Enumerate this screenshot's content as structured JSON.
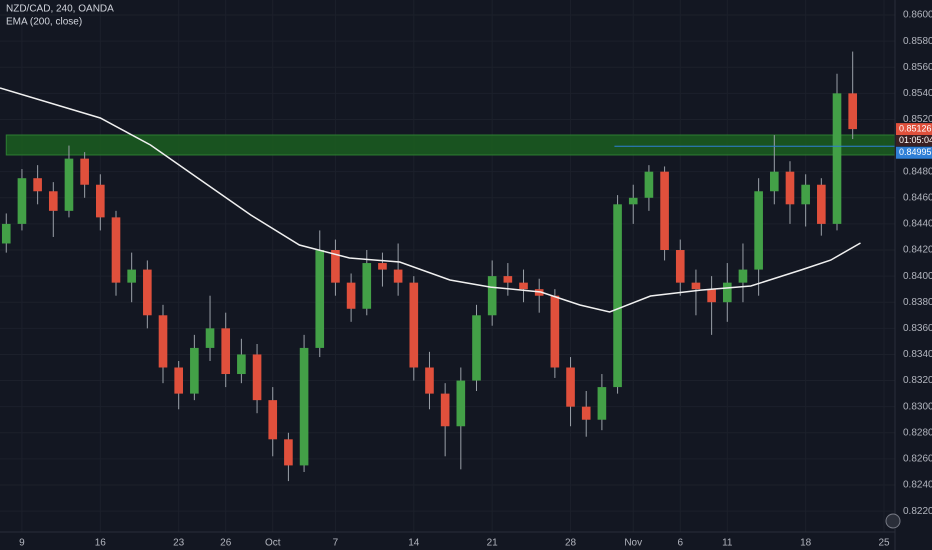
{
  "chart_data": {
    "type": "candlestick",
    "title": "NZD/CAD, 240, OANDA",
    "indicator": "EMA (200, close)",
    "up_color": "#43a047",
    "down_color": "#e0503c",
    "wick_color": "#9aa0a8",
    "x": [
      -1,
      0,
      1,
      2,
      3,
      4,
      5,
      6,
      7,
      8,
      9,
      10,
      11,
      12,
      13,
      14,
      15,
      16,
      17,
      18,
      19,
      20,
      21,
      22,
      23,
      24,
      25,
      26,
      27,
      28,
      29,
      30,
      31,
      32,
      33,
      34,
      35,
      36,
      37,
      38,
      39,
      40,
      41,
      42,
      43,
      44,
      45,
      46,
      47,
      48,
      49,
      50,
      51,
      52,
      53
    ],
    "open": [
      0.8425,
      0.844,
      0.8475,
      0.8465,
      0.845,
      0.849,
      0.847,
      0.8445,
      0.8395,
      0.8405,
      0.837,
      0.833,
      0.831,
      0.8345,
      0.836,
      0.8325,
      0.834,
      0.8305,
      0.8275,
      0.8255,
      0.8345,
      0.842,
      0.8395,
      0.8375,
      0.841,
      0.8405,
      0.8395,
      0.833,
      0.831,
      0.8285,
      0.832,
      0.837,
      0.84,
      0.8395,
      0.839,
      0.8385,
      0.833,
      0.83,
      0.829,
      0.8315,
      0.8455,
      0.846,
      0.848,
      0.842,
      0.8395,
      0.839,
      0.838,
      0.8395,
      0.8405,
      0.8465,
      0.848,
      0.8455,
      0.847,
      0.844,
      0.854
    ],
    "high": [
      0.8448,
      0.8482,
      0.8485,
      0.8472,
      0.85,
      0.8495,
      0.8478,
      0.845,
      0.8418,
      0.8412,
      0.8378,
      0.8335,
      0.8355,
      0.8385,
      0.8372,
      0.8352,
      0.8348,
      0.8315,
      0.828,
      0.8355,
      0.8435,
      0.8428,
      0.8402,
      0.842,
      0.8418,
      0.8425,
      0.84,
      0.8342,
      0.8318,
      0.833,
      0.8378,
      0.8412,
      0.841,
      0.8405,
      0.8398,
      0.839,
      0.8338,
      0.8312,
      0.8325,
      0.8462,
      0.847,
      0.8485,
      0.8484,
      0.8428,
      0.8405,
      0.84,
      0.841,
      0.8425,
      0.8475,
      0.8508,
      0.8488,
      0.8478,
      0.8475,
      0.8555,
      0.8572
    ],
    "low": [
      0.8418,
      0.8435,
      0.8455,
      0.843,
      0.8445,
      0.846,
      0.8435,
      0.8385,
      0.838,
      0.836,
      0.8318,
      0.8298,
      0.8305,
      0.8335,
      0.8315,
      0.8318,
      0.8295,
      0.8262,
      0.8243,
      0.825,
      0.8338,
      0.8385,
      0.8365,
      0.837,
      0.8392,
      0.8385,
      0.832,
      0.8298,
      0.8262,
      0.8252,
      0.8312,
      0.8362,
      0.8385,
      0.838,
      0.8372,
      0.8322,
      0.8285,
      0.8277,
      0.8282,
      0.831,
      0.844,
      0.845,
      0.8412,
      0.8385,
      0.837,
      0.8355,
      0.8365,
      0.838,
      0.8385,
      0.8455,
      0.844,
      0.8438,
      0.8431,
      0.8435,
      0.8505
    ],
    "close": [
      0.844,
      0.8475,
      0.8465,
      0.845,
      0.849,
      0.847,
      0.8445,
      0.8395,
      0.8405,
      0.837,
      0.833,
      0.831,
      0.8345,
      0.836,
      0.8325,
      0.834,
      0.8305,
      0.8275,
      0.8255,
      0.8345,
      0.842,
      0.8395,
      0.8375,
      0.841,
      0.8405,
      0.8395,
      0.833,
      0.831,
      0.8285,
      0.832,
      0.837,
      0.84,
      0.8395,
      0.839,
      0.8385,
      0.833,
      0.83,
      0.829,
      0.8315,
      0.8455,
      0.846,
      0.848,
      0.842,
      0.8395,
      0.839,
      0.838,
      0.8395,
      0.8405,
      0.8465,
      0.848,
      0.8455,
      0.847,
      0.844,
      0.854,
      0.85126
    ],
    "ema": {
      "name": "EMA (200, close)",
      "color": "#f0f0f0",
      "x": [
        -1.4,
        5.0,
        8.2,
        11.4,
        14.6,
        17.7,
        20.9,
        24.1,
        27.3,
        29.9,
        33.1,
        35.6,
        37.5,
        40.1,
        43.3,
        46.5,
        49.7,
        51.6,
        53.5
      ],
      "values": [
        0.85441,
        0.85211,
        0.85004,
        0.84736,
        0.84468,
        0.84238,
        0.84139,
        0.84108,
        0.8397,
        0.83916,
        0.83878,
        0.83779,
        0.83725,
        0.83848,
        0.83893,
        0.83924,
        0.84047,
        0.84123,
        0.84254
      ]
    },
    "zone": {
      "color": "#1b5e20",
      "start": -1.0,
      "values": [
        0.84928,
        0.85081
      ]
    },
    "price_line": {
      "color": "#2f7fd6",
      "start": 37.8,
      "value": 0.84995
    },
    "countdown": "01:05:04",
    "xlim": [
      -1.4,
      55.7
    ],
    "ylim": [
      0.8204,
      0.86115
    ],
    "xticks": [
      {
        "value": 0,
        "label": "9"
      },
      {
        "value": 5,
        "label": "16"
      },
      {
        "value": 10,
        "label": "23"
      },
      {
        "value": 13,
        "label": "26"
      },
      {
        "value": 16,
        "label": "Oct"
      },
      {
        "value": 20,
        "label": "7"
      },
      {
        "value": 25,
        "label": "14"
      },
      {
        "value": 30,
        "label": "21"
      },
      {
        "value": 35,
        "label": "28"
      },
      {
        "value": 39,
        "label": "Nov"
      },
      {
        "value": 42,
        "label": "6"
      },
      {
        "value": 45,
        "label": "11"
      },
      {
        "value": 50,
        "label": "18"
      },
      {
        "value": 55,
        "label": "25"
      }
    ],
    "yticks": [
      {
        "value": 0.822,
        "label": "0.82200"
      },
      {
        "value": 0.824,
        "label": "0.82400"
      },
      {
        "value": 0.826,
        "label": "0.82600"
      },
      {
        "value": 0.828,
        "label": "0.82800"
      },
      {
        "value": 0.83,
        "label": "0.83000"
      },
      {
        "value": 0.832,
        "label": "0.83200"
      },
      {
        "value": 0.834,
        "label": "0.83400"
      },
      {
        "value": 0.836,
        "label": "0.83600"
      },
      {
        "value": 0.838,
        "label": "0.83800"
      },
      {
        "value": 0.84,
        "label": "0.84000"
      },
      {
        "value": 0.842,
        "label": "0.84200"
      },
      {
        "value": 0.844,
        "label": "0.84400"
      },
      {
        "value": 0.846,
        "label": "0.84600"
      },
      {
        "value": 0.848,
        "label": "0.84800"
      },
      {
        "value": 0.852,
        "label": "0.85200"
      },
      {
        "value": 0.854,
        "label": "0.85400"
      },
      {
        "value": 0.856,
        "label": "0.85600"
      },
      {
        "value": 0.858,
        "label": "0.85800"
      },
      {
        "value": 0.86,
        "label": "0.86000"
      }
    ]
  }
}
